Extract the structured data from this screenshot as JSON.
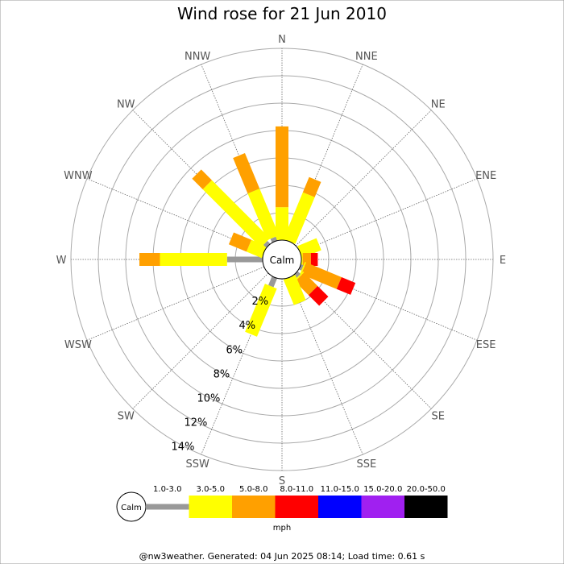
{
  "chart_data": {
    "type": "wind-rose",
    "title": "Wind rose for 21 Jun 2010",
    "directions": [
      "N",
      "NNE",
      "NE",
      "ENE",
      "E",
      "ESE",
      "SE",
      "SSE",
      "S",
      "SSW",
      "SW",
      "WSW",
      "W",
      "WNW",
      "NW",
      "NNW"
    ],
    "ring_labels": [
      "2%",
      "4%",
      "6%",
      "8%",
      "10%",
      "12%",
      "14%"
    ],
    "rings": [
      2,
      4,
      6,
      8,
      10,
      12,
      14
    ],
    "rmax": 14,
    "calm_label": "Calm",
    "unit": "mph",
    "speed_bins": [
      {
        "label": "1.0-3.0",
        "color": "#999999"
      },
      {
        "label": "3.0-5.0",
        "color": "#ffff00"
      },
      {
        "label": "5.0-8.0",
        "color": "#ffa000"
      },
      {
        "label": "8.0-11.0",
        "color": "#ff0000"
      },
      {
        "label": "11.0-15.0",
        "color": "#0000ff"
      },
      {
        "label": "15.0-20.0",
        "color": "#a020f0"
      },
      {
        "label": "20.0-50.0",
        "color": "#000000"
      }
    ],
    "series": [
      {
        "direction": "N",
        "values": [
          0.0,
          2.4,
          5.9,
          0,
          0,
          0,
          0
        ]
      },
      {
        "direction": "NNE",
        "values": [
          0.0,
          3.7,
          1.2,
          0,
          0,
          0,
          0
        ]
      },
      {
        "direction": "NE",
        "values": [
          0,
          0,
          0,
          0,
          0,
          0,
          0
        ]
      },
      {
        "direction": "ENE",
        "values": [
          0.0,
          1.5,
          0,
          0,
          0,
          0,
          0
        ]
      },
      {
        "direction": "E",
        "values": [
          0.0,
          0.1,
          0.6,
          0.5,
          0,
          0,
          0
        ]
      },
      {
        "direction": "ESE",
        "values": [
          0.2,
          0.1,
          2.8,
          1.1,
          0,
          0,
          0
        ]
      },
      {
        "direction": "SE",
        "values": [
          0.3,
          0.1,
          1.4,
          1.1,
          0,
          0,
          0
        ]
      },
      {
        "direction": "SSE",
        "values": [
          0.0,
          2.0,
          0,
          0,
          0,
          0,
          0
        ]
      },
      {
        "direction": "S",
        "values": [
          0,
          0,
          0,
          0,
          0,
          0,
          0
        ]
      },
      {
        "direction": "SSW",
        "values": [
          0.7,
          3.8,
          0,
          0,
          0,
          0,
          0
        ]
      },
      {
        "direction": "SW",
        "values": [
          0,
          0,
          0,
          0,
          0,
          0,
          0
        ]
      },
      {
        "direction": "WSW",
        "values": [
          0,
          0,
          0,
          0,
          0,
          0,
          0
        ]
      },
      {
        "direction": "W",
        "values": [
          2.6,
          4.9,
          1.5,
          0,
          0,
          0,
          0
        ]
      },
      {
        "direction": "WNW",
        "values": [
          0.0,
          1.2,
          1.4,
          0,
          0,
          0,
          0
        ]
      },
      {
        "direction": "NW",
        "values": [
          0.3,
          6.0,
          1.1,
          0,
          0,
          0,
          0
        ]
      },
      {
        "direction": "NNW",
        "values": [
          0.3,
          3.7,
          2.8,
          0,
          0,
          0,
          0
        ]
      }
    ]
  },
  "footer": "@nw3weather. Generated: 04 Jun 2025 08:14; Load time: 0.61 s"
}
